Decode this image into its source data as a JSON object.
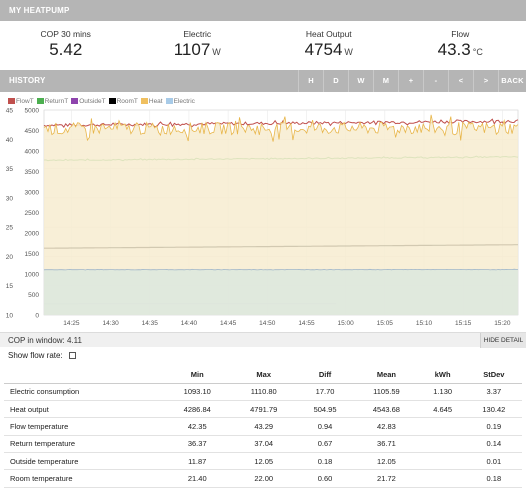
{
  "header": {
    "title": "MY HEATPUMP"
  },
  "summary": [
    {
      "label": "COP 30 mins",
      "value": "5.42",
      "unit": ""
    },
    {
      "label": "Electric",
      "value": "1107",
      "unit": "W"
    },
    {
      "label": "Heat Output",
      "value": "4754",
      "unit": "W"
    },
    {
      "label": "Flow",
      "value": "43.3",
      "unit": "°C"
    }
  ],
  "history": {
    "title": "HISTORY",
    "buttons": [
      "H",
      "D",
      "W",
      "M",
      "+",
      "-",
      "<",
      ">",
      "BACK"
    ]
  },
  "legend": [
    {
      "name": "FlowT",
      "color": "#c0504d"
    },
    {
      "name": "ReturnT",
      "color": "#4caf50"
    },
    {
      "name": "OutsideT",
      "color": "#8e44ad"
    },
    {
      "name": "RoomT",
      "color": "#000000"
    },
    {
      "name": "Heat",
      "color": "#f0c060"
    },
    {
      "name": "Electric",
      "color": "#a8cbe8"
    }
  ],
  "chart_data": {
    "type": "line",
    "x_ticks": [
      "14:25",
      "14:30",
      "14:35",
      "14:40",
      "14:45",
      "14:50",
      "14:55",
      "15:00",
      "15:05",
      "15:10",
      "15:15",
      "15:20"
    ],
    "y_left_ticks": [
      10,
      15,
      20,
      25,
      30,
      35,
      40,
      45
    ],
    "y_right_ticks": [
      0,
      500,
      1000,
      1500,
      2000,
      2500,
      3000,
      3500,
      4000,
      4500,
      5000
    ],
    "ylim_left": [
      10,
      45
    ],
    "ylim_right": [
      0,
      5000
    ],
    "series": [
      {
        "name": "FlowT",
        "axis": "left",
        "start": 42.4,
        "end": 43.1,
        "noise": 0.25
      },
      {
        "name": "ReturnT",
        "axis": "left",
        "start": 36.4,
        "end": 37.0,
        "noise": 0.08
      },
      {
        "name": "OutsideT",
        "axis": "left",
        "start": 11.9,
        "end": 11.95,
        "noise": 0,
        "stop_fraction": 0.62
      },
      {
        "name": "RoomT",
        "axis": "left",
        "start": 21.4,
        "end": 22.0,
        "noise": 0
      },
      {
        "name": "Heat",
        "axis": "right",
        "start": 4543,
        "end": 4560,
        "noise": 150
      },
      {
        "name": "Electric",
        "axis": "right",
        "start": 1105,
        "end": 1108,
        "noise": 4
      }
    ],
    "grid": true
  },
  "cop": {
    "label": "COP in window:",
    "value": "4.11",
    "hide_label": "HIDE DETAIL"
  },
  "flow_rate": {
    "label": "Show flow rate:"
  },
  "stats": {
    "headers": [
      "",
      "Min",
      "Max",
      "Diff",
      "Mean",
      "kWh",
      "StDev"
    ],
    "rows": [
      [
        "Electric consumption",
        "1093.10",
        "1110.80",
        "17.70",
        "1105.59",
        "1.130",
        "3.37"
      ],
      [
        "Heat output",
        "4286.84",
        "4791.79",
        "504.95",
        "4543.68",
        "4.645",
        "130.42"
      ],
      [
        "Flow temperature",
        "42.35",
        "43.29",
        "0.94",
        "42.83",
        "",
        "0.19"
      ],
      [
        "Return temperature",
        "36.37",
        "37.04",
        "0.67",
        "36.71",
        "",
        "0.14"
      ],
      [
        "Outside temperature",
        "11.87",
        "12.05",
        "0.18",
        "12.05",
        "",
        "0.01"
      ],
      [
        "Room temperature",
        "21.40",
        "22.00",
        "0.60",
        "21.72",
        "",
        "0.18"
      ]
    ]
  }
}
